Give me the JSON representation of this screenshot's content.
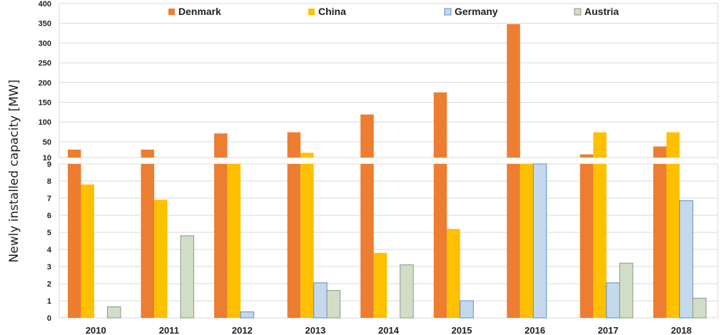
{
  "chart_data": {
    "type": "bar",
    "title": "",
    "xlabel": "",
    "ylabel": "Newly installed capacity [MW]",
    "categories": [
      "2010",
      "2011",
      "2012",
      "2013",
      "2014",
      "2015",
      "2016",
      "2017",
      "2018"
    ],
    "broken_axis": true,
    "lower_axis": {
      "ylim": [
        0,
        9
      ],
      "ticks": [
        "0",
        "1",
        "2",
        "3",
        "4",
        "5",
        "6",
        "7",
        "8",
        "9"
      ]
    },
    "upper_axis": {
      "ylim": [
        10,
        400
      ],
      "ticks": [
        "10",
        "50",
        "100",
        "150",
        "200",
        "250",
        "300",
        "350",
        "400"
      ]
    },
    "grid": true,
    "legend_position": "top",
    "series": [
      {
        "name": "Denmark",
        "color": "#ED7D31",
        "values": [
          30,
          30,
          71,
          74,
          119,
          175,
          348,
          18,
          38
        ]
      },
      {
        "name": "China",
        "color": "#FFC000",
        "values": [
          7.8,
          6.9,
          9.05,
          22,
          3.8,
          5.2,
          9.3,
          74,
          74
        ]
      },
      {
        "name": "Germany",
        "color": "#C5D9ED",
        "values": [
          0,
          0,
          0.35,
          2.05,
          0,
          1.0,
          9.1,
          2.05,
          6.85
        ]
      },
      {
        "name": "Austria",
        "color": "#D2DDC8",
        "values": [
          0.65,
          4.8,
          0,
          1.6,
          3.1,
          0,
          0,
          3.2,
          1.15
        ]
      }
    ],
    "edge_colors": {
      "Germany": "#5b8bc7",
      "Austria": "#8a9a80"
    }
  }
}
